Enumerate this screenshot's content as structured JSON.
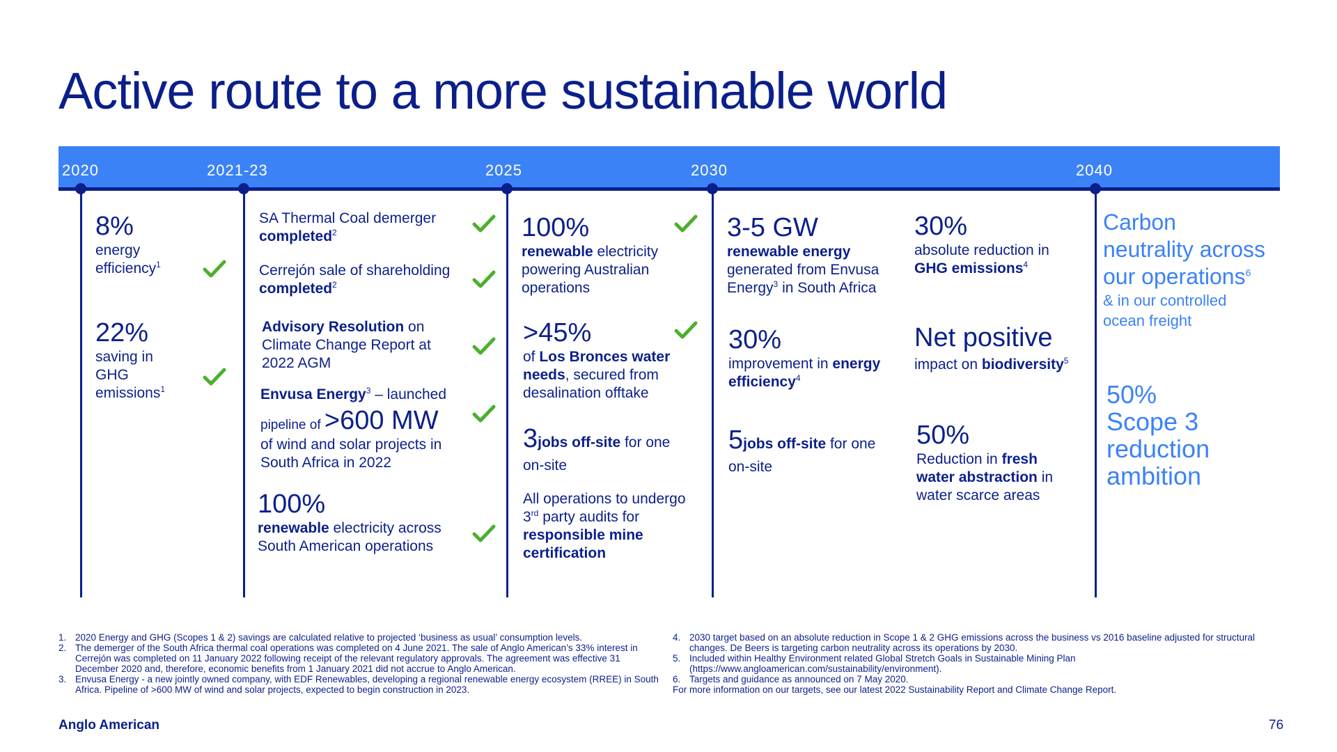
{
  "title": "Active route to a more sustainable world",
  "timeline": {
    "years": [
      "2020",
      "2021-23",
      "2025",
      "2030",
      "2040"
    ]
  },
  "col2020": {
    "a_value": "8%",
    "a_l1": "energy",
    "a_l2": "efficiency",
    "a_sup": "1",
    "b_value": "22%",
    "b_l1": "saving in",
    "b_l2": "GHG",
    "b_l3": "emissions",
    "b_sup": "1"
  },
  "col2021": {
    "a_l1": "SA Thermal Coal demerger",
    "a_l2": "completed",
    "a_sup": "2",
    "b_l1": "Cerrejón sale of shareholding",
    "b_l2": "completed",
    "b_sup": "2",
    "c_bold": "Advisory Resolution",
    "c_on": " on",
    "c_l2": "Climate Change Report at",
    "c_l3": "2022 AGM",
    "d_bold": "Envusa Energy",
    "d_sup": "3",
    "d_rest": " – launched",
    "d_pre": "pipeline of ",
    "d_big": ">600 MW",
    "d_l3": "of wind and solar projects in",
    "d_l4": "South Africa in 2022",
    "e_value": "100%",
    "e_bold": "renewable",
    "e_rest": " electricity across",
    "e_l2": "South American operations"
  },
  "col2025": {
    "a_value": "100%",
    "a_bold": "renewable",
    "a_rest": " electricity",
    "a_l2": "powering Australian",
    "a_l3": "operations",
    "b_value": ">45%",
    "b_of": "of ",
    "b_bold1": "Los Bronces water",
    "b_bold2": "needs",
    "b_rest": ", secured from",
    "b_l3": "desalination offtake",
    "c_num": "3",
    "c_bold": "jobs off-site",
    "c_rest": " for one",
    "c_l2": "on-site",
    "d_l1": "All operations to undergo",
    "d_num": "3",
    "d_sup": "rd",
    "d_l2rest": " party audits for",
    "d_bold1": "responsible mine",
    "d_bold2": "certification"
  },
  "col2030a": {
    "a_value": "3-5 GW",
    "a_bold": "renewable energy",
    "a_l2": "generated from Envusa",
    "a_l3a": "Energy",
    "a_sup": "3",
    "a_l3b": " in South Africa",
    "b_value": "30%",
    "b_l1a": "improvement",
    "b_l1b": " in ",
    "b_bold1": "energy",
    "b_bold2": "efficiency",
    "b_sup": "4",
    "c_num": "5",
    "c_bold": "jobs off-site",
    "c_rest": " for one",
    "c_l2": "on-site"
  },
  "col2030b": {
    "a_value": "30%",
    "a_l1": "absolute reduction in",
    "a_bold": "GHG emissions",
    "a_sup": "4",
    "b_value": "Net positive",
    "b_l1": "impact on ",
    "b_bold": "biodiversity",
    "b_sup": "5",
    "c_value": "50%",
    "c_l1": "Reduction in ",
    "c_bold1": "fresh",
    "c_bold2": "water abstraction",
    "c_rest": " in",
    "c_l3": "water scarce areas"
  },
  "col2040": {
    "a_l1": "Carbon",
    "a_l2": "neutrality across",
    "a_l3": "our operations",
    "a_sup": "6",
    "a_l4": "& in our controlled",
    "a_l5": "ocean freight",
    "b_value": "50%",
    "b_l1": "Scope 3",
    "b_l2": "reduction",
    "b_l3": "ambition"
  },
  "footnotes_left": [
    {
      "n": "1.",
      "t": "2020 Energy and GHG (Scopes 1 & 2) savings are calculated relative to projected ‘business as usual’ consumption levels."
    },
    {
      "n": "2.",
      "t": "The demerger of the South Africa thermal coal operations was completed on 4 June 2021. The sale of Anglo American’s 33% interest in Cerrejón was completed on 11 January 2022 following receipt of the relevant regulatory approvals. The agreement was effective 31 December 2020 and, therefore, economic benefits from 1 January 2021 did not accrue to Anglo American."
    },
    {
      "n": "3.",
      "t": "Envusa Energy - a new jointly owned company, with EDF Renewables, developing a regional renewable energy ecosystem (RREE) in South Africa. Pipeline of >600 MW of wind and solar projects, expected to begin construction in 2023."
    }
  ],
  "footnotes_right": [
    {
      "n": "4.",
      "t": "2030 target based on an absolute reduction in Scope 1 & 2 GHG emissions across the business vs 2016 baseline adjusted for structural changes. De Beers is targeting carbon neutrality across its operations by 2030."
    },
    {
      "n": "5.",
      "t": "Included within Healthy Environment related Global Stretch Goals in Sustainable Mining Plan (https://www.angloamerican.com/sustainability/environment)."
    },
    {
      "n": "6.",
      "t": "Targets and guidance as announced on 7 May 2020."
    }
  ],
  "footnote_more": "For more information on our targets, see our latest 2022 Sustainability Report and Climate Change Report.",
  "brand": "Anglo American",
  "page_number": "76",
  "colors": {
    "navy": "#0b1f8a",
    "band": "#3b82f6",
    "check": "#4caf2f"
  }
}
